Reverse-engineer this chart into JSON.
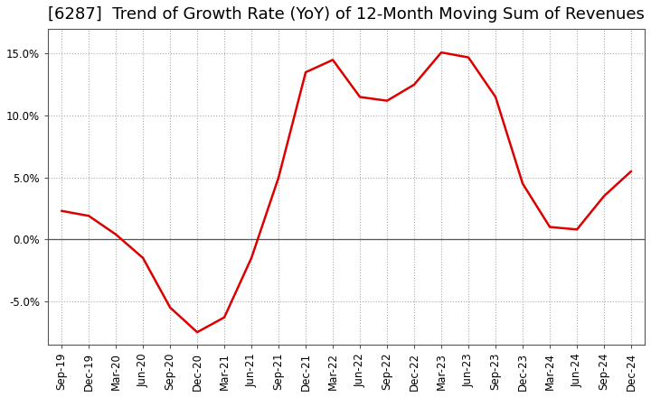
{
  "title": "[6287]  Trend of Growth Rate (YoY) of 12-Month Moving Sum of Revenues",
  "x_labels": [
    "Sep-19",
    "Dec-19",
    "Mar-20",
    "Jun-20",
    "Sep-20",
    "Dec-20",
    "Mar-21",
    "Jun-21",
    "Sep-21",
    "Dec-21",
    "Mar-22",
    "Jun-22",
    "Sep-22",
    "Dec-22",
    "Mar-23",
    "Jun-23",
    "Sep-23",
    "Dec-23",
    "Mar-24",
    "Jun-24",
    "Sep-24",
    "Dec-24"
  ],
  "y_values": [
    2.3,
    1.9,
    0.4,
    -1.5,
    -5.5,
    -7.5,
    -6.3,
    -1.5,
    5.0,
    13.5,
    14.5,
    11.5,
    11.2,
    12.5,
    15.1,
    14.7,
    11.5,
    4.5,
    1.0,
    0.8,
    3.5,
    5.5
  ],
  "line_color": "#dd0000",
  "line_width": 1.8,
  "ylim": [
    -8.5,
    17.0
  ],
  "yticks": [
    -5.0,
    0.0,
    5.0,
    10.0,
    15.0
  ],
  "ytick_labels": [
    "-5.0%",
    "0.0%",
    "5.0%",
    "10.0%",
    "15.0%"
  ],
  "background_color": "#ffffff",
  "grid_color": "#aaaaaa",
  "title_fontsize": 13,
  "tick_fontsize": 8.5
}
